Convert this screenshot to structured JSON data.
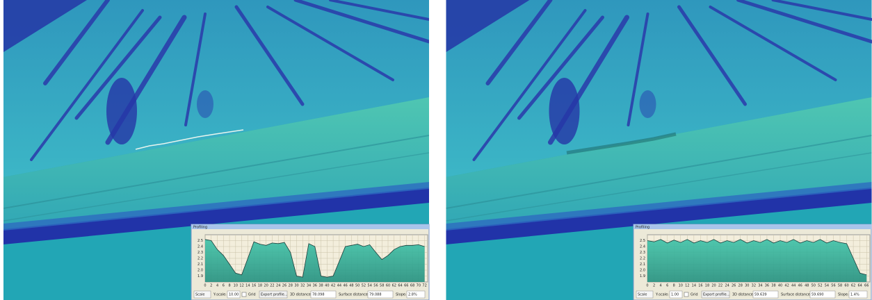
{
  "chart_data": [
    {
      "type": "area",
      "title": "Profiling",
      "x": [
        0,
        2,
        4,
        6,
        8,
        10,
        12,
        14,
        16,
        18,
        20,
        22,
        24,
        26,
        28,
        30,
        32,
        34,
        36,
        38,
        40,
        42,
        44,
        46,
        48,
        50,
        52,
        54,
        56,
        58,
        60,
        62,
        64,
        66,
        68,
        70,
        72
      ],
      "values": [
        2.52,
        2.5,
        2.35,
        2.25,
        2.1,
        1.95,
        1.92,
        2.2,
        2.48,
        2.44,
        2.42,
        2.46,
        2.45,
        2.47,
        2.3,
        1.9,
        1.88,
        2.45,
        2.4,
        1.9,
        1.88,
        1.9,
        2.15,
        2.4,
        2.42,
        2.44,
        2.4,
        2.43,
        2.3,
        2.18,
        2.25,
        2.35,
        2.4,
        2.42,
        2.42,
        2.43,
        2.4
      ],
      "xlim": [
        0,
        73
      ],
      "ylim": [
        1.8,
        2.6
      ],
      "xticks": [
        0,
        2,
        4,
        6,
        8,
        10,
        12,
        14,
        16,
        18,
        20,
        22,
        24,
        26,
        28,
        30,
        32,
        34,
        36,
        38,
        40,
        42,
        44,
        46,
        48,
        50,
        52,
        54,
        56,
        58,
        60,
        62,
        64,
        66,
        68,
        70,
        72
      ],
      "yticks": [
        {
          "value": 1.9,
          "label": "1.9"
        },
        {
          "value": 2,
          "label": "2.0"
        },
        {
          "value": 2.1,
          "label": "2.1"
        },
        {
          "value": 2.2,
          "label": "2.2"
        },
        {
          "value": 2.3,
          "label": "2.3"
        },
        {
          "value": 2.4,
          "label": "2.4"
        },
        {
          "value": 2.5,
          "label": "2.5"
        }
      ],
      "grid": true,
      "color": "#2fa893"
    },
    {
      "type": "area",
      "title": "Profiling",
      "x": [
        0,
        2,
        4,
        6,
        8,
        10,
        12,
        14,
        16,
        18,
        20,
        22,
        24,
        26,
        28,
        30,
        32,
        34,
        36,
        38,
        40,
        42,
        44,
        46,
        48,
        50,
        52,
        54,
        56,
        58,
        60,
        62,
        64,
        66
      ],
      "values": [
        2.5,
        2.48,
        2.52,
        2.46,
        2.51,
        2.47,
        2.52,
        2.46,
        2.5,
        2.47,
        2.52,
        2.46,
        2.5,
        2.47,
        2.52,
        2.46,
        2.5,
        2.47,
        2.52,
        2.46,
        2.5,
        2.47,
        2.52,
        2.46,
        2.5,
        2.47,
        2.52,
        2.46,
        2.5,
        2.47,
        2.45,
        2.2,
        1.95,
        1.92
      ],
      "xlim": [
        0,
        67
      ],
      "ylim": [
        1.8,
        2.6
      ],
      "xticks": [
        0,
        2,
        4,
        6,
        8,
        10,
        12,
        14,
        16,
        18,
        20,
        22,
        24,
        26,
        28,
        30,
        32,
        34,
        36,
        38,
        40,
        42,
        44,
        46,
        48,
        50,
        52,
        54,
        56,
        58,
        60,
        62,
        64,
        66
      ],
      "yticks": [
        {
          "value": 1.9,
          "label": "1.9"
        },
        {
          "value": 2,
          "label": "2.0"
        },
        {
          "value": 2.1,
          "label": "2.1"
        },
        {
          "value": 2.2,
          "label": "2.2"
        },
        {
          "value": 2.3,
          "label": "2.3"
        },
        {
          "value": 2.4,
          "label": "2.4"
        },
        {
          "value": 2.5,
          "label": "2.5"
        }
      ],
      "grid": true,
      "color": "#2fa893"
    }
  ],
  "toolbars": [
    {
      "scale": "Scale",
      "yscale_label": "Y-scale:",
      "yscale": "10.00",
      "grid": "Grid",
      "export": "Export profile...",
      "distance_label": "3D distance:",
      "distance": "78.098",
      "surface_label": "Surface distance:",
      "surface": "79.088",
      "slope_label": "Slope:",
      "slope": "2.8%"
    },
    {
      "scale": "Scale",
      "yscale_label": "Y-scale:",
      "yscale": "1.00",
      "grid": "Grid",
      "export": "Export profile...",
      "distance_label": "3D distance:",
      "distance": "59.639",
      "surface_label": "Surface distance:",
      "surface": "59.690",
      "slope_label": "Slope:",
      "slope": "1.4%"
    }
  ]
}
